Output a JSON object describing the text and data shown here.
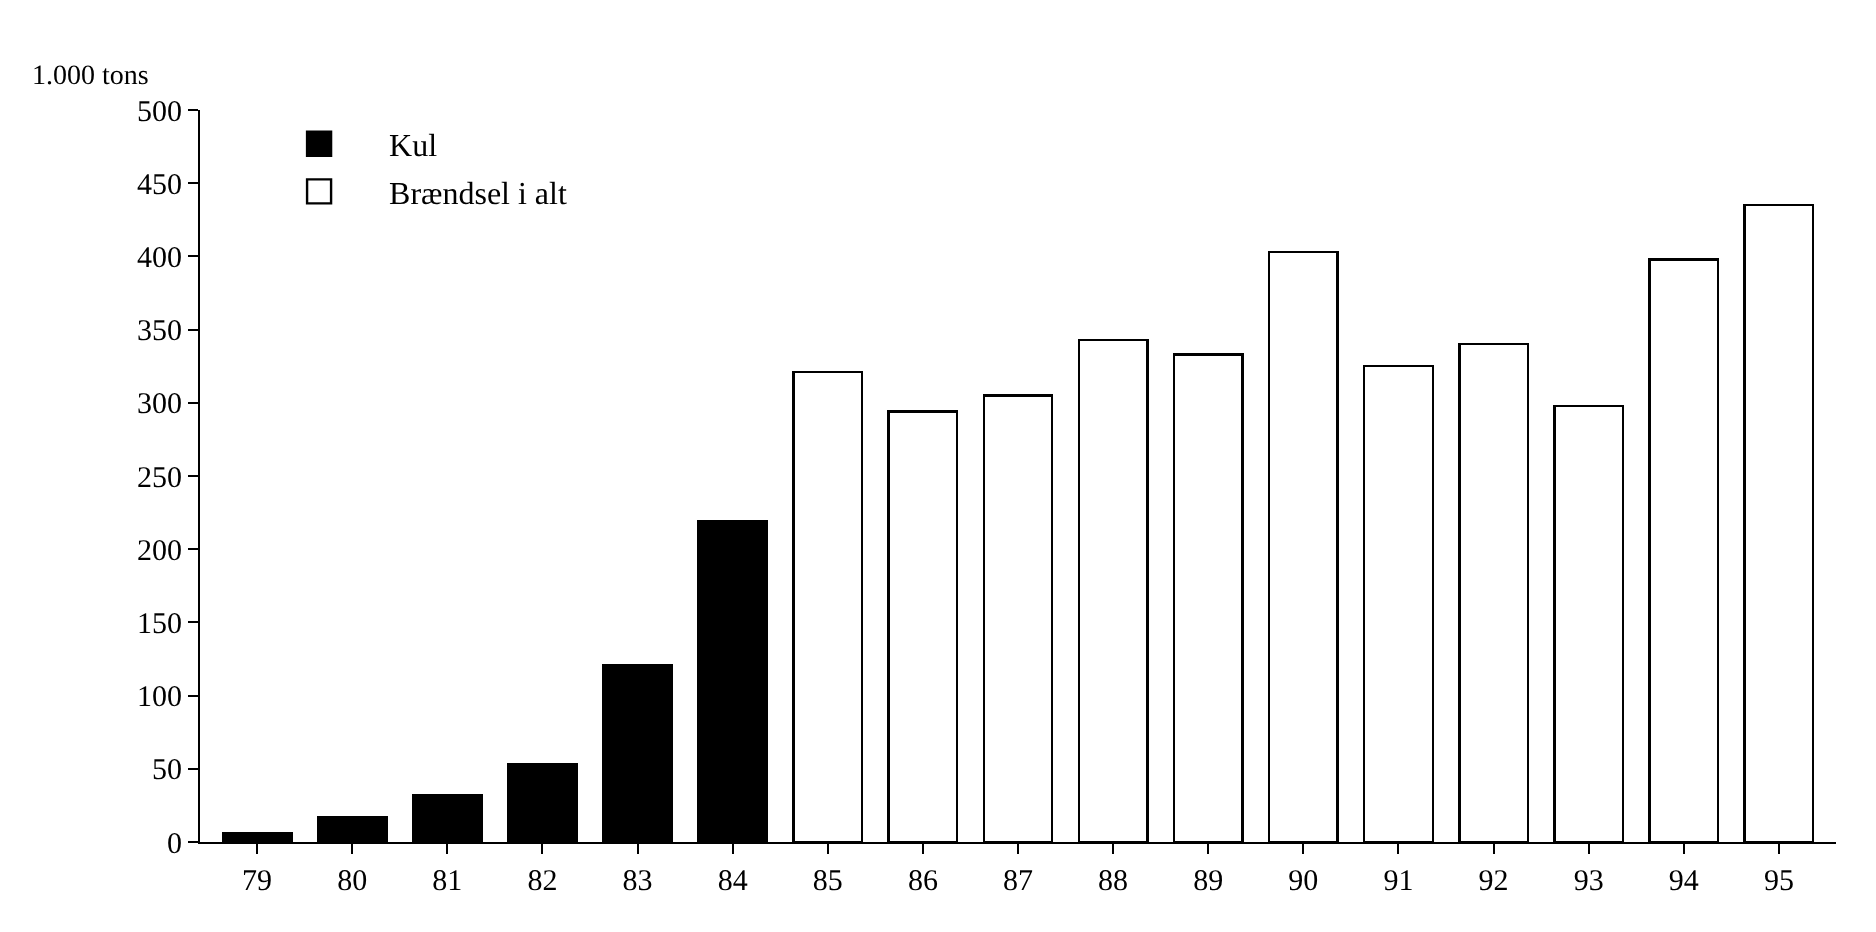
{
  "chart_data": {
    "type": "bar",
    "ylabel": "1.000 tons",
    "categories": [
      "79",
      "80",
      "81",
      "82",
      "83",
      "84",
      "85",
      "86",
      "87",
      "88",
      "89",
      "90",
      "91",
      "92",
      "93",
      "94",
      "95"
    ],
    "series": [
      {
        "name": "Kul",
        "color": "#000000",
        "values": [
          6,
          17,
          32,
          53,
          121,
          219,
          null,
          null,
          null,
          null,
          null,
          null,
          null,
          null,
          null,
          null,
          null
        ]
      },
      {
        "name": "Brændsel i alt",
        "color": "#ffffff",
        "values": [
          null,
          null,
          null,
          null,
          null,
          null,
          321,
          294,
          305,
          343,
          333,
          403,
          325,
          340,
          298,
          398,
          435
        ]
      }
    ],
    "stacked": true,
    "ylim": [
      0,
      500
    ],
    "yticks": [
      0,
      50,
      100,
      150,
      200,
      250,
      300,
      350,
      400,
      450,
      500
    ],
    "legend": "top left"
  }
}
